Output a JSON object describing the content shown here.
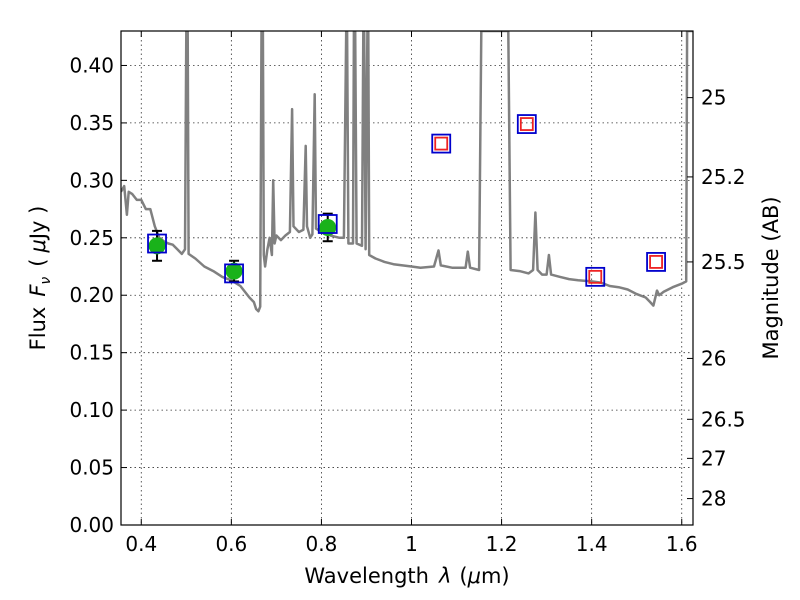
{
  "chart_data": {
    "type": "scatter",
    "xlabel_main": "Wavelength",
    "xlabel_symbol": "λ",
    "xlabel_unit_prefix": "(",
    "xlabel_unit_mu": "μ",
    "xlabel_unit_suffix": "m)",
    "ylabel_main": "Flux",
    "ylabel_symbol": "F",
    "ylabel_subscript": "ν",
    "ylabel_unit_prefix": "(",
    "ylabel_unit_mu": "μ",
    "ylabel_unit_suffix": "Jy )",
    "y2label": "Magnitude (AB)",
    "xlim": [
      0.355,
      1.625
    ],
    "ylim": [
      0.0,
      0.43
    ],
    "xticks": [
      {
        "value": 0.4,
        "label": "0.4"
      },
      {
        "value": 0.6,
        "label": "0.6"
      },
      {
        "value": 0.8,
        "label": "0.8"
      },
      {
        "value": 1.0,
        "label": "1"
      },
      {
        "value": 1.2,
        "label": "1.2"
      },
      {
        "value": 1.4,
        "label": "1.4"
      },
      {
        "value": 1.6,
        "label": "1.6"
      }
    ],
    "yticks": [
      {
        "value": 0.0,
        "label": "0.00"
      },
      {
        "value": 0.05,
        "label": "0.05"
      },
      {
        "value": 0.1,
        "label": "0.10"
      },
      {
        "value": 0.15,
        "label": "0.15"
      },
      {
        "value": 0.2,
        "label": "0.20"
      },
      {
        "value": 0.25,
        "label": "0.25"
      },
      {
        "value": 0.3,
        "label": "0.30"
      },
      {
        "value": 0.35,
        "label": "0.35"
      },
      {
        "value": 0.4,
        "label": "0.40"
      }
    ],
    "y2ticks": [
      {
        "flux": 0.372,
        "label": "25"
      },
      {
        "flux": 0.303,
        "label": "25.2"
      },
      {
        "flux": 0.229,
        "label": "25.5"
      },
      {
        "flux": 0.145,
        "label": "26"
      },
      {
        "flux": 0.092,
        "label": "26.5"
      },
      {
        "flux": 0.058,
        "label": "27"
      },
      {
        "flux": 0.023,
        "label": "28"
      }
    ],
    "grid": true,
    "model_spectrum": {
      "color": "#808080",
      "points": [
        [
          0.355,
          0.29
        ],
        [
          0.362,
          0.295
        ],
        [
          0.368,
          0.27
        ],
        [
          0.372,
          0.29
        ],
        [
          0.38,
          0.288
        ],
        [
          0.39,
          0.283
        ],
        [
          0.4,
          0.283
        ],
        [
          0.41,
          0.275
        ],
        [
          0.42,
          0.275
        ],
        [
          0.43,
          0.26
        ],
        [
          0.44,
          0.25
        ],
        [
          0.45,
          0.247
        ],
        [
          0.46,
          0.245
        ],
        [
          0.47,
          0.244
        ],
        [
          0.48,
          0.24
        ],
        [
          0.49,
          0.236
        ],
        [
          0.497,
          0.24
        ],
        [
          0.5,
          0.43
        ],
        [
          0.503,
          0.43
        ],
        [
          0.505,
          0.236
        ],
        [
          0.52,
          0.232
        ],
        [
          0.54,
          0.225
        ],
        [
          0.56,
          0.221
        ],
        [
          0.58,
          0.216
        ],
        [
          0.6,
          0.213
        ],
        [
          0.62,
          0.208
        ],
        [
          0.64,
          0.198
        ],
        [
          0.65,
          0.194
        ],
        [
          0.655,
          0.188
        ],
        [
          0.66,
          0.186
        ],
        [
          0.664,
          0.19
        ],
        [
          0.667,
          0.43
        ],
        [
          0.67,
          0.43
        ],
        [
          0.672,
          0.235
        ],
        [
          0.675,
          0.225
        ],
        [
          0.68,
          0.24
        ],
        [
          0.685,
          0.25
        ],
        [
          0.69,
          0.235
        ],
        [
          0.693,
          0.3
        ],
        [
          0.696,
          0.245
        ],
        [
          0.7,
          0.252
        ],
        [
          0.71,
          0.248
        ],
        [
          0.72,
          0.252
        ],
        [
          0.73,
          0.255
        ],
        [
          0.735,
          0.362
        ],
        [
          0.738,
          0.26
        ],
        [
          0.75,
          0.255
        ],
        [
          0.76,
          0.257
        ],
        [
          0.765,
          0.33
        ],
        [
          0.768,
          0.26
        ],
        [
          0.775,
          0.25
        ],
        [
          0.78,
          0.253
        ],
        [
          0.785,
          0.375
        ],
        [
          0.788,
          0.258
        ],
        [
          0.8,
          0.255
        ],
        [
          0.82,
          0.252
        ],
        [
          0.84,
          0.25
        ],
        [
          0.85,
          0.25
        ],
        [
          0.855,
          0.43
        ],
        [
          0.857,
          0.43
        ],
        [
          0.86,
          0.245
        ],
        [
          0.87,
          0.245
        ],
        [
          0.872,
          0.43
        ],
        [
          0.875,
          0.43
        ],
        [
          0.878,
          0.245
        ],
        [
          0.89,
          0.243
        ],
        [
          0.893,
          0.43
        ],
        [
          0.895,
          0.43
        ],
        [
          0.898,
          0.24
        ],
        [
          0.902,
          0.43
        ],
        [
          0.904,
          0.43
        ],
        [
          0.906,
          0.235
        ],
        [
          0.92,
          0.232
        ],
        [
          0.94,
          0.229
        ],
        [
          0.96,
          0.227
        ],
        [
          0.98,
          0.226
        ],
        [
          1.0,
          0.225
        ],
        [
          1.02,
          0.224
        ],
        [
          1.05,
          0.225
        ],
        [
          1.06,
          0.239
        ],
        [
          1.065,
          0.226
        ],
        [
          1.09,
          0.224
        ],
        [
          1.12,
          0.224
        ],
        [
          1.125,
          0.238
        ],
        [
          1.13,
          0.224
        ],
        [
          1.15,
          0.222
        ],
        [
          1.155,
          0.43
        ],
        [
          1.215,
          0.43
        ],
        [
          1.22,
          0.222
        ],
        [
          1.24,
          0.221
        ],
        [
          1.26,
          0.219
        ],
        [
          1.27,
          0.222
        ],
        [
          1.275,
          0.272
        ],
        [
          1.28,
          0.222
        ],
        [
          1.29,
          0.218
        ],
        [
          1.3,
          0.218
        ],
        [
          1.305,
          0.235
        ],
        [
          1.31,
          0.218
        ],
        [
          1.33,
          0.216
        ],
        [
          1.35,
          0.214
        ],
        [
          1.37,
          0.213
        ],
        [
          1.4,
          0.212
        ],
        [
          1.42,
          0.211
        ],
        [
          1.44,
          0.208
        ],
        [
          1.46,
          0.207
        ],
        [
          1.48,
          0.205
        ],
        [
          1.5,
          0.201
        ],
        [
          1.52,
          0.198
        ],
        [
          1.53,
          0.194
        ],
        [
          1.537,
          0.191
        ],
        [
          1.545,
          0.204
        ],
        [
          1.55,
          0.2
        ],
        [
          1.56,
          0.203
        ],
        [
          1.58,
          0.207
        ],
        [
          1.6,
          0.21
        ],
        [
          1.61,
          0.212
        ],
        [
          1.612,
          0.43
        ],
        [
          1.625,
          0.43
        ]
      ]
    },
    "series": [
      {
        "marker": "filled-circle",
        "color": "#19b21a",
        "points": [
          {
            "x": 0.435,
            "y": 0.243,
            "yerr": 0.013
          },
          {
            "x": 0.606,
            "y": 0.221,
            "yerr": 0.009
          },
          {
            "x": 0.814,
            "y": 0.259,
            "yerr": 0.012
          }
        ]
      },
      {
        "marker": "open-square",
        "color": "#0000cc",
        "points": [
          {
            "x": 0.435,
            "y": 0.245
          },
          {
            "x": 0.606,
            "y": 0.219
          },
          {
            "x": 0.814,
            "y": 0.262
          },
          {
            "x": 1.066,
            "y": 0.332
          },
          {
            "x": 1.256,
            "y": 0.349
          },
          {
            "x": 1.408,
            "y": 0.216
          },
          {
            "x": 1.543,
            "y": 0.229
          }
        ]
      },
      {
        "marker": "open-square",
        "color": "#ee2222",
        "points": [
          {
            "x": 1.066,
            "y": 0.332
          },
          {
            "x": 1.256,
            "y": 0.349
          },
          {
            "x": 1.408,
            "y": 0.216
          },
          {
            "x": 1.543,
            "y": 0.229
          }
        ]
      }
    ]
  }
}
